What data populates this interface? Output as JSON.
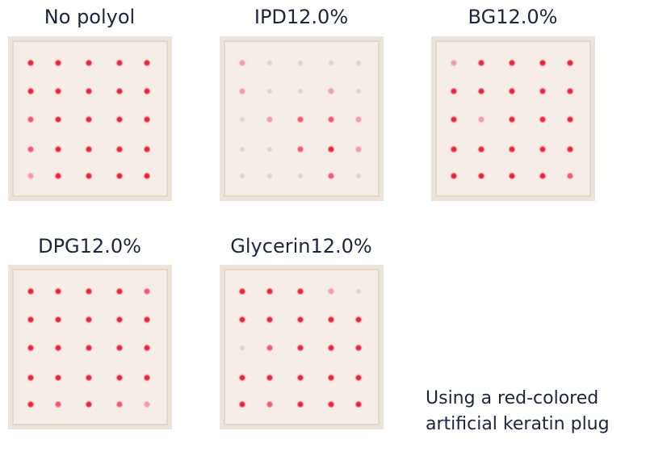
{
  "panels": [
    {
      "title": "No polyol"
    },
    {
      "title": "IPD12.0%"
    },
    {
      "title": "BG12.0%"
    },
    {
      "title": "DPG12.0%"
    },
    {
      "title": "Glycerin12.0%"
    }
  ],
  "note": {
    "lines": [
      "Using a red-colored",
      "artificial keratin plug"
    ]
  }
}
